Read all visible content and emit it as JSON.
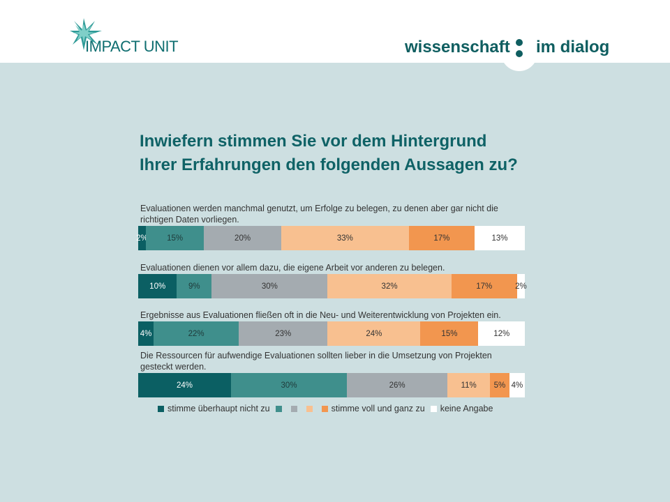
{
  "header": {
    "left_logo_text": "IMPACT UNIT",
    "right_logo_word1": "wissenschaft",
    "right_logo_word2": "im dialog"
  },
  "chart_data": {
    "type": "bar",
    "orientation": "horizontal-stacked-100",
    "title_line1": "Inwiefern stimmen Sie vor dem Hintergrund",
    "title_line2": "Ihrer Erfahrungen den folgenden Aussagen zu?",
    "categories": [
      "Evaluationen werden manchmal genutzt, um Erfolge zu belegen, zu denen aber gar nicht die richtigen Daten vorliegen.",
      "Evaluationen dienen vor allem dazu, die eigene Arbeit vor anderen zu belegen.",
      "Ergebnisse aus Evaluationen fließen oft in die Neu- und Weiterentwicklung von Projekten ein.",
      "Die Ressourcen für aufwendige Evaluationen sollten lieber in die Umsetzung von Projekten gesteckt werden."
    ],
    "series": [
      {
        "name": "stimme überhaupt nicht zu",
        "color": "#0b5f63",
        "text_color": "#ffffff",
        "values": [
          2,
          10,
          4,
          24
        ]
      },
      {
        "name": "",
        "color": "#3f8f8c",
        "text_color": "#1f3a3a",
        "values": [
          15,
          9,
          22,
          30
        ]
      },
      {
        "name": "",
        "color": "#a4abb0",
        "text_color": "#333333",
        "values": [
          20,
          30,
          23,
          26
        ]
      },
      {
        "name": "",
        "color": "#f8c090",
        "text_color": "#333333",
        "values": [
          33,
          32,
          24,
          11
        ]
      },
      {
        "name": "stimme voll und ganz zu",
        "color": "#f2964f",
        "text_color": "#333333",
        "values": [
          17,
          17,
          15,
          5
        ]
      },
      {
        "name": "keine Angabe",
        "color": "#ffffff",
        "text_color": "#333333",
        "values": [
          13,
          2,
          12,
          4
        ]
      }
    ],
    "value_suffix": "%",
    "legend_position": "bottom"
  }
}
